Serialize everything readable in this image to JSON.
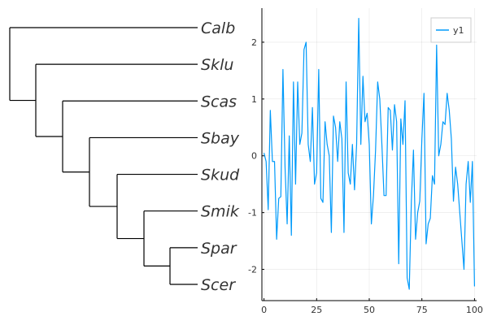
{
  "chart_data": [
    {
      "type": "tree",
      "leaves": [
        "Calb",
        "Sklu",
        "Scas",
        "Sbay",
        "Skud",
        "Smik",
        "Spar",
        "Scer"
      ],
      "topology": "(Calb,(Sklu,(Scas,(Sbay,(Skud,(Smik,(Spar,Scer)))))))"
    },
    {
      "type": "line",
      "title": "",
      "xlabel": "",
      "ylabel": "",
      "xlim": [
        -1,
        101
      ],
      "ylim": [
        -2.55,
        2.6
      ],
      "xticks": [
        "0",
        "25",
        "50",
        "75",
        "100"
      ],
      "yticks": [
        "-2",
        "-1",
        "0",
        "1",
        "2"
      ],
      "grid": true,
      "legend": "top-right",
      "series": [
        {
          "name": "y1",
          "color": "#009AFA",
          "x": [
            0,
            1,
            2,
            3,
            4,
            5,
            6,
            7,
            8,
            9,
            10,
            11,
            12,
            13,
            14,
            15,
            16,
            17,
            18,
            19,
            20,
            21,
            22,
            23,
            24,
            25,
            26,
            27,
            28,
            29,
            30,
            31,
            32,
            33,
            34,
            35,
            36,
            37,
            38,
            39,
            40,
            41,
            42,
            43,
            44,
            45,
            46,
            47,
            48,
            49,
            50,
            51,
            52,
            53,
            54,
            55,
            56,
            57,
            58,
            59,
            60,
            61,
            62,
            63,
            64,
            65,
            66,
            67,
            68,
            69,
            70,
            71,
            72,
            73,
            74,
            75,
            76,
            77,
            78,
            79,
            80,
            81,
            82,
            83,
            84,
            85,
            86,
            87,
            88,
            89,
            90,
            91,
            92,
            93,
            94,
            95,
            96,
            97,
            98,
            99,
            100
          ],
          "y": [
            0.05,
            -0.1,
            -0.95,
            0.8,
            -0.1,
            -0.1,
            -1.47,
            -0.75,
            -0.72,
            1.52,
            -0.2,
            -1.2,
            0.35,
            -1.4,
            1.3,
            -0.5,
            1.3,
            0.2,
            0.4,
            1.87,
            2.0,
            0.2,
            -0.1,
            0.85,
            -0.5,
            -0.3,
            1.52,
            -0.75,
            -0.82,
            0.6,
            0.2,
            0.0,
            -1.35,
            0.7,
            0.5,
            -0.1,
            0.6,
            0.3,
            -1.35,
            1.3,
            -0.3,
            -0.5,
            0.2,
            -0.6,
            0.2,
            2.42,
            0.2,
            1.4,
            0.6,
            0.75,
            0.2,
            -1.2,
            -0.7,
            0.1,
            1.3,
            1.0,
            0.2,
            -0.7,
            -0.7,
            0.85,
            0.8,
            0.1,
            0.9,
            0.6,
            -1.9,
            0.65,
            0.2,
            0.97,
            -2.15,
            -2.35,
            -0.8,
            0.1,
            -1.47,
            -1.0,
            -0.8,
            0.3,
            1.1,
            -1.55,
            -1.2,
            -1.1,
            -0.35,
            -0.5,
            1.95,
            0.0,
            0.2,
            0.6,
            0.55,
            1.1,
            0.8,
            0.3,
            -0.8,
            -0.2,
            -0.5,
            -1.0,
            -1.5,
            -2.0,
            -0.5,
            -0.1,
            -0.82,
            -0.1,
            -2.3
          ]
        }
      ]
    }
  ]
}
